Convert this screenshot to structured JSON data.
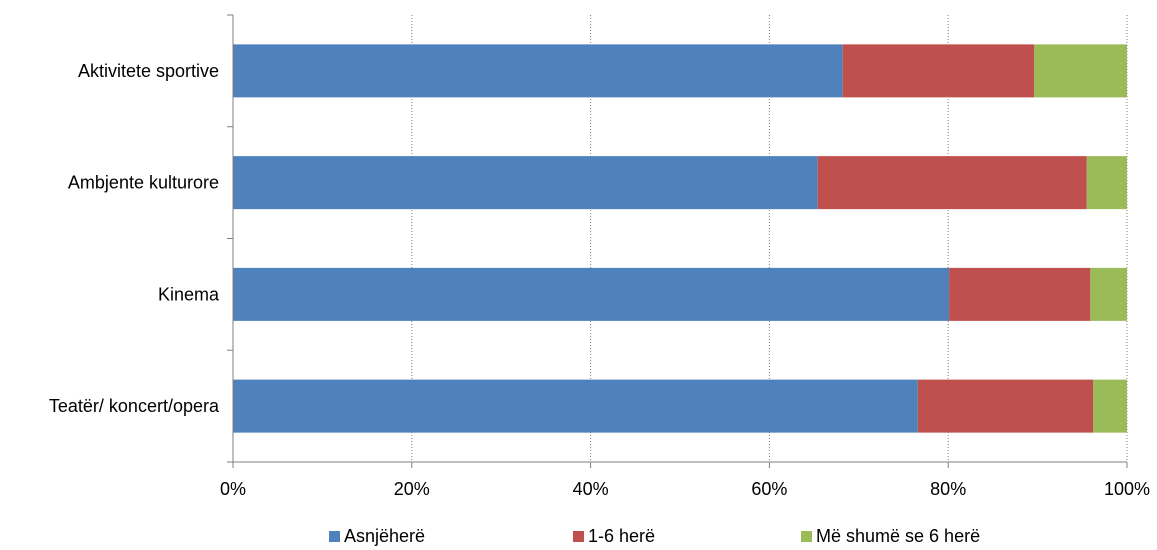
{
  "chart_data": {
    "type": "bar",
    "orientation": "horizontal",
    "stacked": "percent",
    "title": "",
    "xlabel": "",
    "ylabel": "",
    "categories": [
      "Aktivitete sportive",
      "Ambjente kulturore",
      "Kinema",
      "Teatër/ koncert/opera"
    ],
    "series": [
      {
        "name": "Asnjëherë",
        "color": "#4F81BD",
        "values": [
          68.2,
          65.4,
          80.1,
          76.6
        ]
      },
      {
        "name": "1-6 herë",
        "color": "#C0504D",
        "values": [
          21.4,
          30.1,
          15.8,
          19.6
        ]
      },
      {
        "name": "Më shumë se 6 herë",
        "color": "#9BBB59",
        "values": [
          10.4,
          4.5,
          4.1,
          3.8
        ]
      }
    ],
    "xlim": [
      0,
      100
    ],
    "x_ticks": [
      "0%",
      "20%",
      "40%",
      "60%",
      "80%",
      "100%"
    ],
    "grid": "vertical dotted",
    "legend_position": "bottom"
  }
}
